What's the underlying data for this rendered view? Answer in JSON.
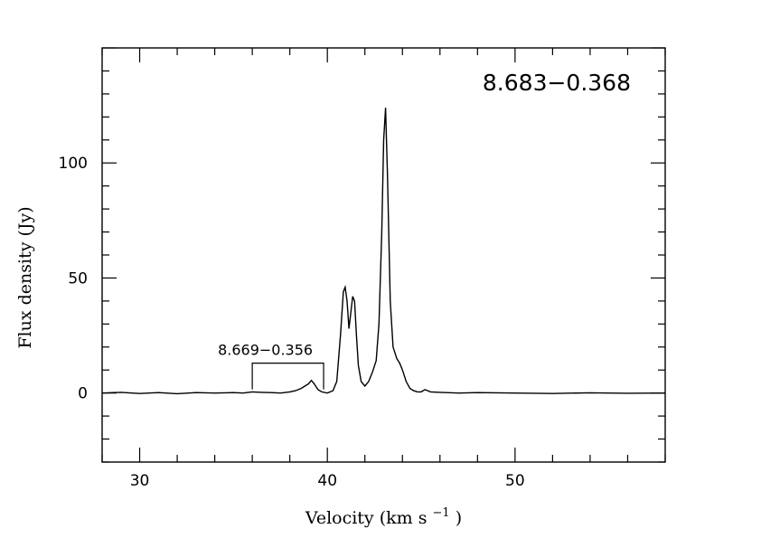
{
  "chart_data": {
    "type": "line",
    "title": "8.683−0.368",
    "xlabel": "Velocity (km s⁻¹)",
    "xlabel_main": "Velocity (km s",
    "xlabel_sup": "−1",
    "xlabel_close": ")",
    "ylabel": "Flux density (Jy)",
    "xlim": [
      28,
      58
    ],
    "ylim": [
      -30,
      150
    ],
    "xticks": [
      30,
      40,
      50
    ],
    "yticks": [
      0,
      50,
      100
    ],
    "grid": false,
    "legend": "none",
    "annotation": {
      "text": "8.669−0.356",
      "x_start": 36.0,
      "x_end": 39.8,
      "y_bracket": 13,
      "y_base": 0
    },
    "series": [
      {
        "x": [
          28,
          29,
          30,
          31,
          32,
          33,
          34,
          35,
          35.5,
          36,
          36.5,
          37,
          37.5,
          38,
          38.3,
          38.6,
          38.8,
          39,
          39.15,
          39.3,
          39.5,
          39.7,
          40,
          40.3,
          40.5,
          40.7,
          40.85,
          40.95,
          41.05,
          41.15,
          41.25,
          41.35,
          41.45,
          41.55,
          41.65,
          41.8,
          42,
          42.2,
          42.4,
          42.6,
          42.75,
          42.9,
          43,
          43.1,
          43.2,
          43.35,
          43.5,
          43.7,
          43.85,
          44,
          44.2,
          44.4,
          44.6,
          44.8,
          45,
          45.2,
          45.5,
          46,
          47,
          48,
          50,
          52,
          54,
          56,
          58
        ],
        "y": [
          0,
          0.3,
          -0.2,
          0.2,
          -0.3,
          0.2,
          0,
          0.2,
          0,
          0.5,
          0.3,
          0.2,
          0,
          0.5,
          1,
          2,
          3,
          4,
          5.5,
          4,
          1.5,
          0.5,
          0,
          1,
          5,
          25,
          44,
          46,
          40,
          28,
          35,
          42,
          40,
          25,
          12,
          5,
          3,
          5,
          9,
          14,
          30,
          70,
          110,
          124,
          95,
          40,
          20,
          15,
          13,
          10,
          5,
          2,
          1,
          0.5,
          0.5,
          1.5,
          0.5,
          0.3,
          0,
          0.2,
          0,
          -0.2,
          0.1,
          -0.1,
          0
        ]
      }
    ]
  }
}
